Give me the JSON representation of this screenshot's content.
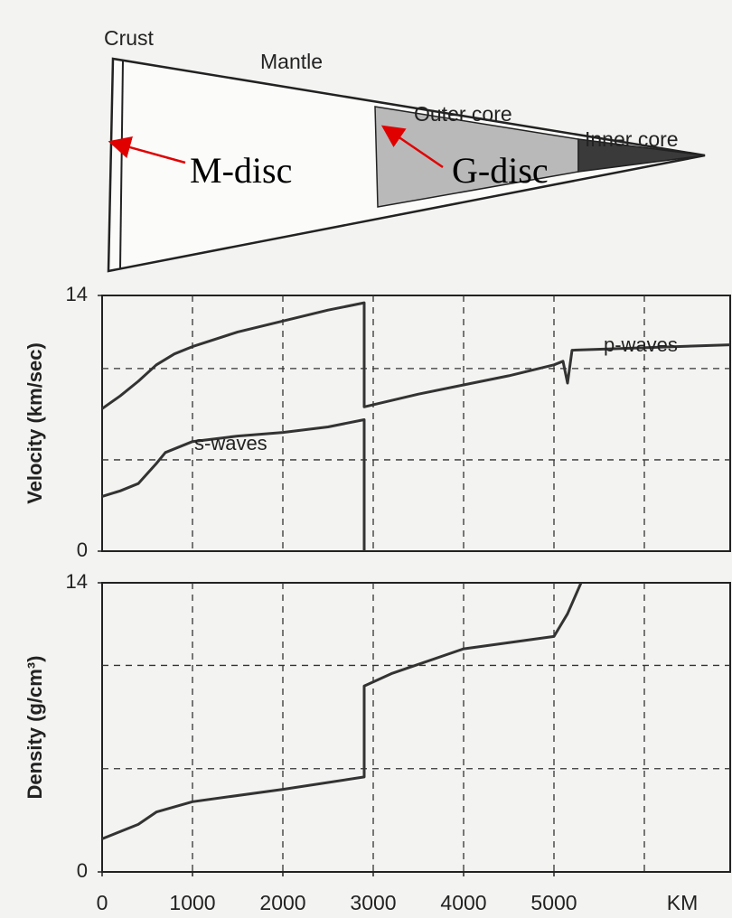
{
  "diagram": {
    "labels": [
      "Crust",
      "Mantle",
      "Outer core",
      "Inner core"
    ],
    "annotations": [
      "M-disc",
      "G-disc"
    ]
  },
  "chart_data": [
    {
      "type": "line",
      "ylabel": "Velocity (km/sec)",
      "ylim": [
        0,
        14
      ],
      "yticks": [
        0,
        14
      ],
      "ygrid": [
        5,
        10
      ],
      "xlim": [
        0,
        6950
      ],
      "xgrid": [
        1000,
        2000,
        3000,
        4000,
        5000,
        6000
      ],
      "series": [
        {
          "name": "p-waves",
          "color": "#333333",
          "x": [
            0,
            200,
            400,
            600,
            800,
            1000,
            1500,
            2000,
            2500,
            2900,
            2900,
            3500,
            4000,
            4500,
            5000,
            5100,
            5150,
            5200,
            6950
          ],
          "values": [
            7.8,
            8.5,
            9.3,
            10.2,
            10.8,
            11.2,
            12.0,
            12.6,
            13.2,
            13.6,
            7.9,
            8.6,
            9.1,
            9.6,
            10.2,
            10.4,
            9.2,
            11.0,
            11.3
          ]
        },
        {
          "name": "s-waves",
          "color": "#333333",
          "x": [
            0,
            200,
            400,
            600,
            700,
            1000,
            1500,
            2000,
            2500,
            2900,
            2900
          ],
          "values": [
            3.0,
            3.3,
            3.7,
            4.8,
            5.4,
            6.0,
            6.3,
            6.5,
            6.8,
            7.2,
            0
          ]
        }
      ]
    },
    {
      "type": "line",
      "ylabel": "Density (g/cm³)",
      "xlabel": "KM",
      "ylim": [
        0,
        14
      ],
      "yticks": [
        0,
        14
      ],
      "ygrid": [
        5,
        10
      ],
      "xlim": [
        0,
        6950
      ],
      "xticks": [
        0,
        1000,
        2000,
        3000,
        4000,
        5000
      ],
      "xgrid": [
        1000,
        2000,
        3000,
        4000,
        5000,
        6000
      ],
      "series": [
        {
          "color": "#333333",
          "x": [
            0,
            400,
            600,
            1000,
            2000,
            2900,
            2900,
            3200,
            4000,
            5000,
            5150,
            5300
          ],
          "values": [
            1.6,
            2.3,
            2.9,
            3.4,
            4.0,
            4.6,
            9.0,
            9.6,
            10.8,
            11.4,
            12.5,
            14.0
          ]
        }
      ]
    }
  ]
}
